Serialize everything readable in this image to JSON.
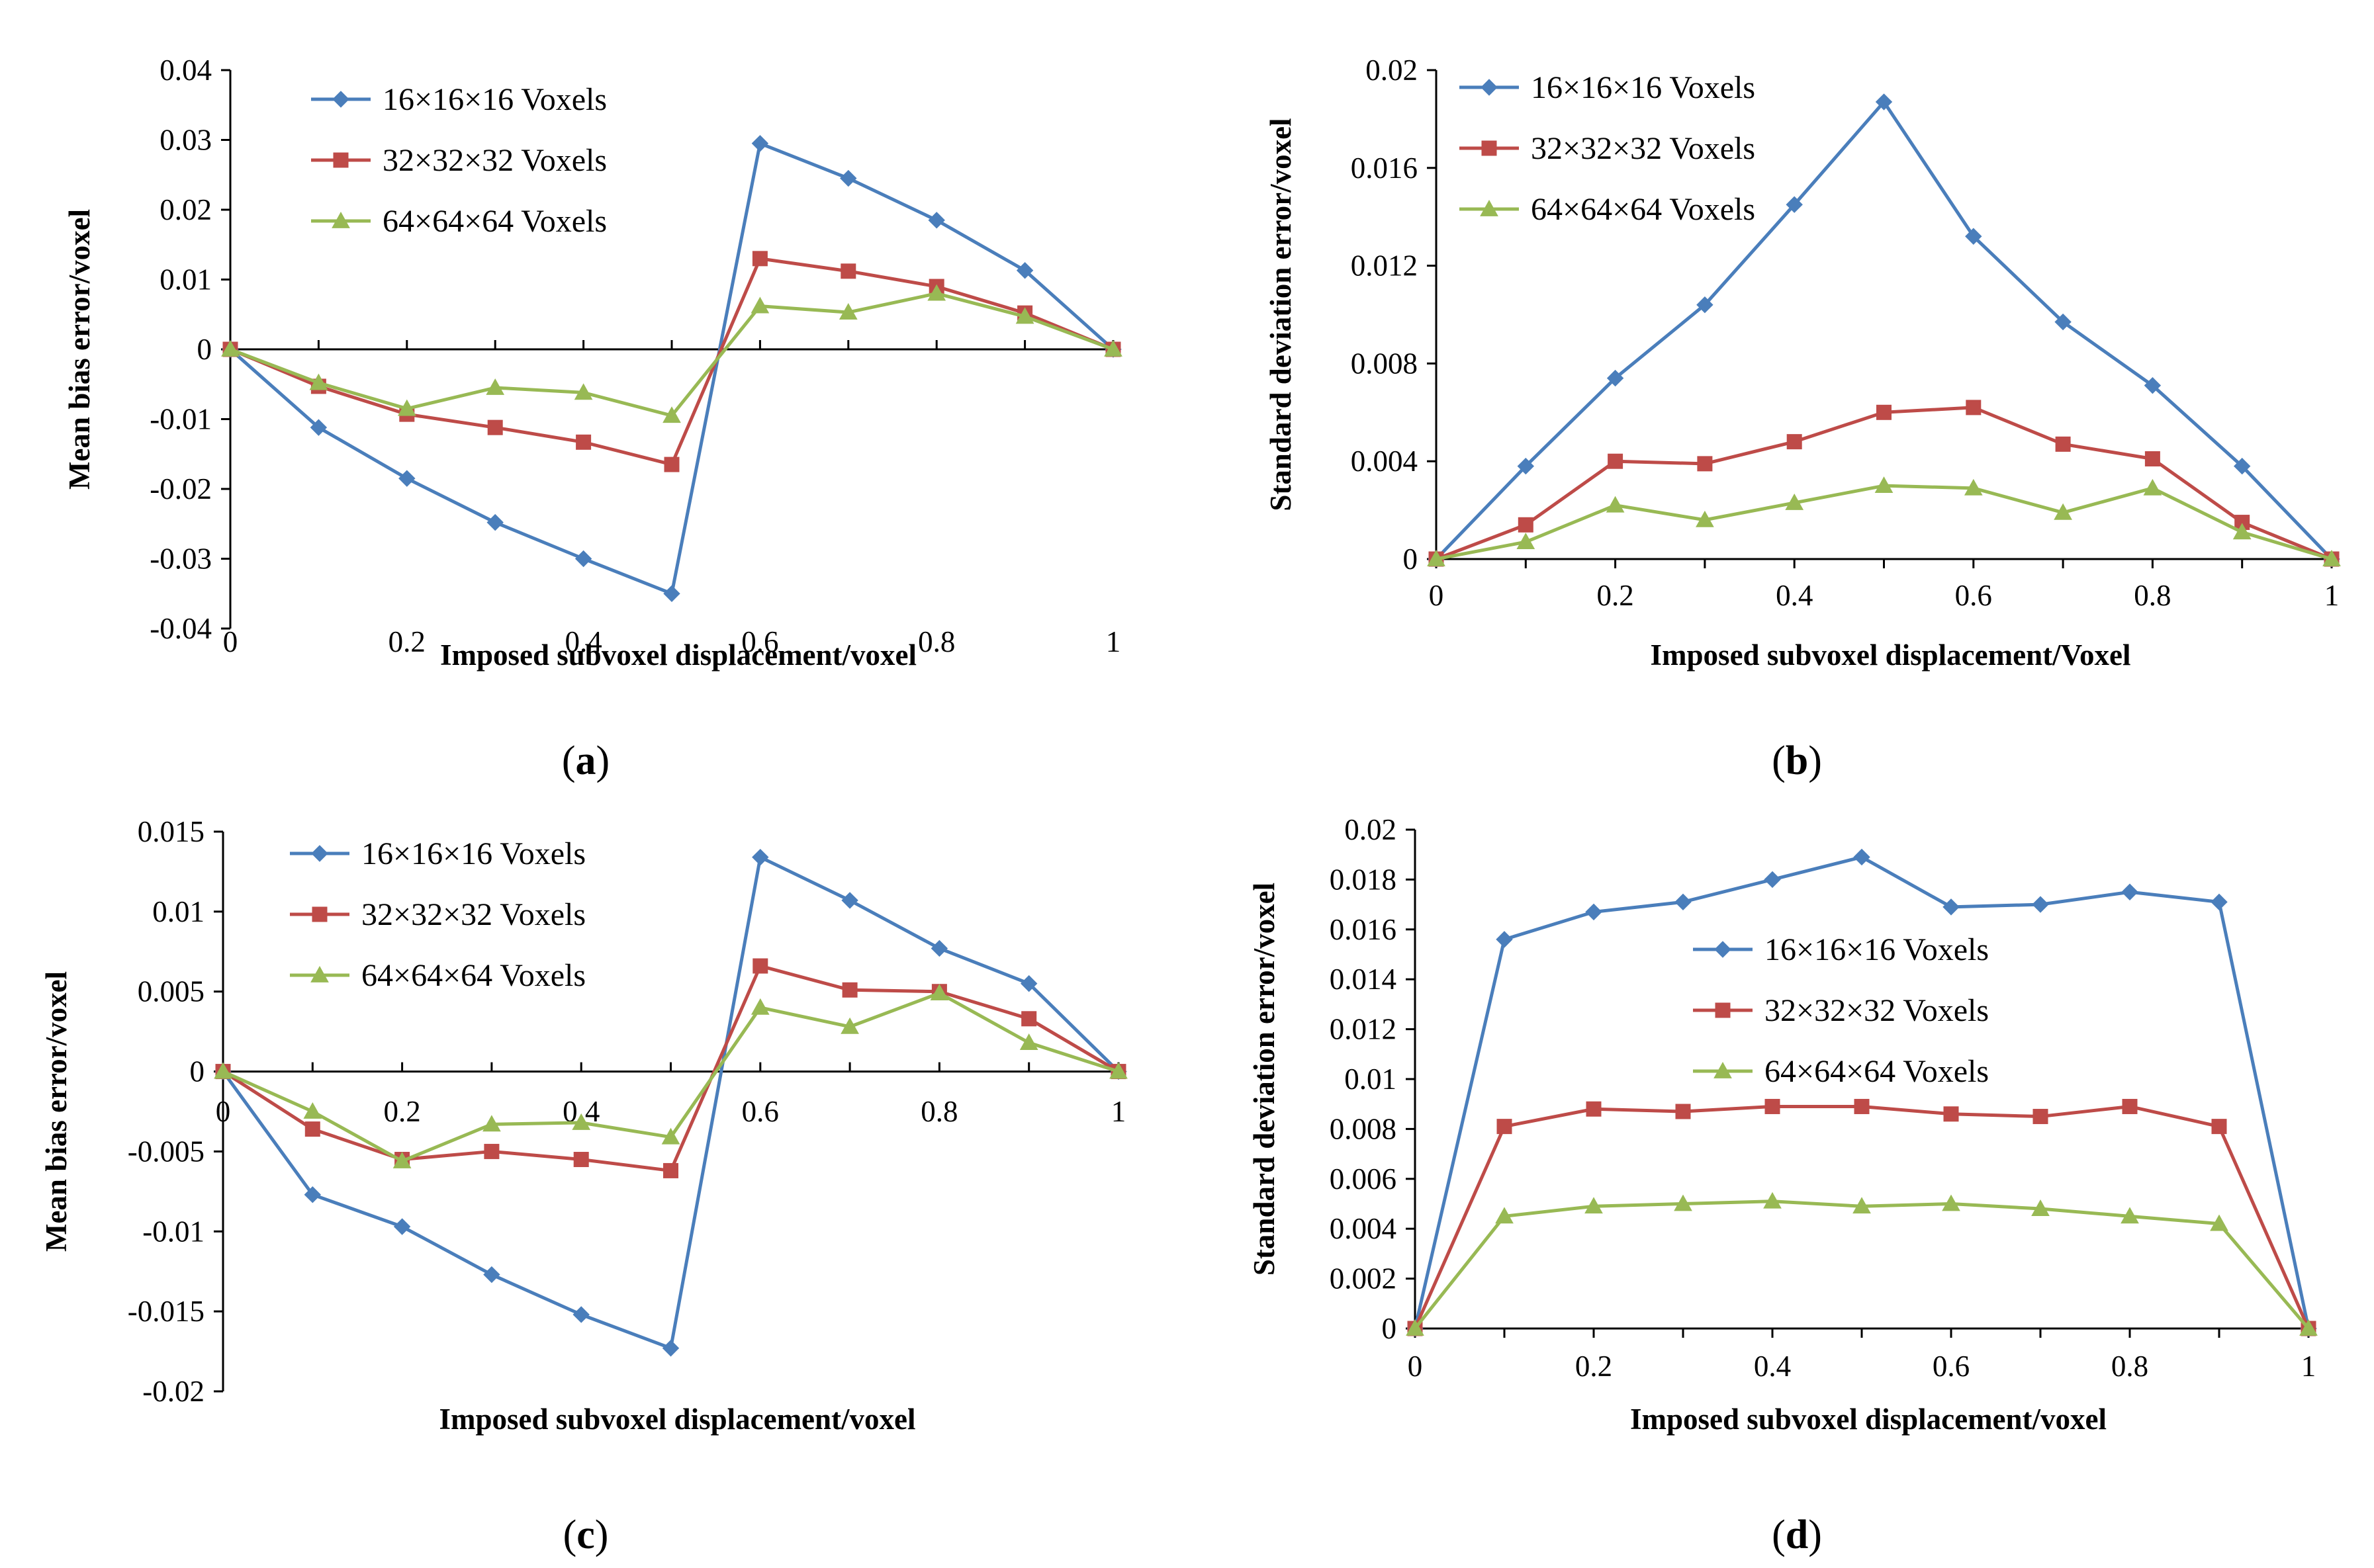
{
  "chart_data": [
    {
      "type": "line",
      "caption": "a",
      "xlabel": "Imposed subvoxel displacement/voxel",
      "ylabel": "Mean bias error/voxel",
      "xlim": [
        0,
        1
      ],
      "ylim": [
        -0.04,
        0.04
      ],
      "x_ticks": [
        "0",
        "0.2",
        "0.4",
        "0.6",
        "0.8",
        "1"
      ],
      "y_ticks": [
        "0.04",
        "0.03",
        "0.02",
        "0.01",
        "0",
        "-0.01",
        "-0.02",
        "-0.03",
        "-0.04"
      ],
      "legend_position": "top-left",
      "x": [
        0,
        0.1,
        0.2,
        0.3,
        0.4,
        0.5,
        0.6,
        0.7,
        0.8,
        0.9,
        1.0
      ],
      "series": [
        {
          "name": "16×16×16 Voxels",
          "color": "#4A7EBB",
          "marker": "diamond",
          "values": [
            0,
            -0.0112,
            -0.0185,
            -0.0248,
            -0.03,
            -0.035,
            0.0295,
            0.0245,
            0.0185,
            0.0113,
            0
          ]
        },
        {
          "name": "32×32×32 Voxels",
          "color": "#BE4B48",
          "marker": "square",
          "values": [
            0,
            -0.0053,
            -0.0093,
            -0.0112,
            -0.0133,
            -0.0165,
            0.013,
            0.0112,
            0.009,
            0.0052,
            0
          ]
        },
        {
          "name": "64×64×64 Voxels",
          "color": "#98B954",
          "marker": "triangle",
          "values": [
            0,
            -0.0048,
            -0.0085,
            -0.0055,
            -0.0062,
            -0.0095,
            0.0062,
            0.0053,
            0.008,
            0.0047,
            0
          ]
        }
      ]
    },
    {
      "type": "line",
      "caption": "b",
      "xlabel": "Imposed subvoxel displacement/Voxel",
      "ylabel": "Standard deviation error/voxel",
      "xlim": [
        0,
        1
      ],
      "ylim": [
        0,
        0.02
      ],
      "x_ticks": [
        "0",
        "0.2",
        "0.4",
        "0.6",
        "0.8",
        "1"
      ],
      "y_ticks": [
        "0.02",
        "0.016",
        "0.012",
        "0.008",
        "0.004",
        "0"
      ],
      "legend_position": "top-left",
      "x": [
        0,
        0.1,
        0.2,
        0.3,
        0.4,
        0.5,
        0.6,
        0.7,
        0.8,
        0.9,
        1.0
      ],
      "series": [
        {
          "name": "16×16×16 Voxels",
          "color": "#4A7EBB",
          "marker": "diamond",
          "values": [
            0,
            0.0038,
            0.0074,
            0.0104,
            0.0145,
            0.0187,
            0.0132,
            0.0097,
            0.0071,
            0.0038,
            0
          ]
        },
        {
          "name": "32×32×32 Voxels",
          "color": "#BE4B48",
          "marker": "square",
          "values": [
            0,
            0.0014,
            0.004,
            0.0039,
            0.0048,
            0.006,
            0.0062,
            0.0047,
            0.0041,
            0.0015,
            0
          ]
        },
        {
          "name": "64×64×64 Voxels",
          "color": "#98B954",
          "marker": "triangle",
          "values": [
            0,
            0.0007,
            0.0022,
            0.0016,
            0.0023,
            0.003,
            0.0029,
            0.0019,
            0.0029,
            0.0011,
            0
          ]
        }
      ]
    },
    {
      "type": "line",
      "caption": "c",
      "xlabel": "Imposed subvoxel displacement/voxel",
      "ylabel": "Mean bias error/voxel",
      "xlim": [
        0,
        1
      ],
      "ylim": [
        -0.02,
        0.015
      ],
      "x_ticks": [
        "0",
        "0.2",
        "0.4",
        "0.6",
        "0.8",
        "1"
      ],
      "y_ticks": [
        "0.015",
        "0.01",
        "0.005",
        "0",
        "-0.005",
        "-0.01",
        "-0.015",
        "-0.02"
      ],
      "legend_position": "top-left",
      "x": [
        0,
        0.1,
        0.2,
        0.3,
        0.4,
        0.5,
        0.6,
        0.7,
        0.8,
        0.9,
        1.0
      ],
      "series": [
        {
          "name": "16×16×16 Voxels",
          "color": "#4A7EBB",
          "marker": "diamond",
          "values": [
            0,
            -0.0077,
            -0.0097,
            -0.0127,
            -0.0152,
            -0.0173,
            0.0134,
            0.0107,
            0.0077,
            0.0055,
            0
          ]
        },
        {
          "name": "32×32×32 Voxels",
          "color": "#BE4B48",
          "marker": "square",
          "values": [
            0,
            -0.0036,
            -0.0055,
            -0.005,
            -0.0055,
            -0.0062,
            0.0066,
            0.0051,
            0.005,
            0.0033,
            0
          ]
        },
        {
          "name": "64×64×64 Voxels",
          "color": "#98B954",
          "marker": "triangle",
          "values": [
            0,
            -0.0025,
            -0.0056,
            -0.0033,
            -0.0032,
            -0.0041,
            0.004,
            0.0028,
            0.0049,
            0.0018,
            0
          ]
        }
      ]
    },
    {
      "type": "line",
      "caption": "d",
      "xlabel": "Imposed subvoxel displacement/voxel",
      "ylabel": "Standard deviation error/voxel",
      "xlim": [
        0,
        1
      ],
      "ylim": [
        0,
        0.02
      ],
      "x_ticks": [
        "0",
        "0.2",
        "0.4",
        "0.6",
        "0.8",
        "1"
      ],
      "y_ticks": [
        "0.02",
        "0.018",
        "0.016",
        "0.014",
        "0.012",
        "0.01",
        "0.008",
        "0.006",
        "0.004",
        "0.002",
        "0"
      ],
      "legend_position": "middle",
      "x": [
        0,
        0.1,
        0.2,
        0.3,
        0.4,
        0.5,
        0.6,
        0.7,
        0.8,
        0.9,
        1.0
      ],
      "series": [
        {
          "name": "16×16×16 Voxels",
          "color": "#4A7EBB",
          "marker": "diamond",
          "values": [
            0,
            0.0156,
            0.0167,
            0.0171,
            0.018,
            0.0189,
            0.0169,
            0.017,
            0.0175,
            0.0171,
            0
          ]
        },
        {
          "name": "32×32×32 Voxels",
          "color": "#BE4B48",
          "marker": "square",
          "values": [
            0,
            0.0081,
            0.0088,
            0.0087,
            0.0089,
            0.0089,
            0.0086,
            0.0085,
            0.0089,
            0.0081,
            0
          ]
        },
        {
          "name": "64×64×64 Voxels",
          "color": "#98B954",
          "marker": "triangle",
          "values": [
            0,
            0.0045,
            0.0049,
            0.005,
            0.0051,
            0.0049,
            0.005,
            0.0048,
            0.0045,
            0.0042,
            0
          ]
        }
      ]
    }
  ]
}
